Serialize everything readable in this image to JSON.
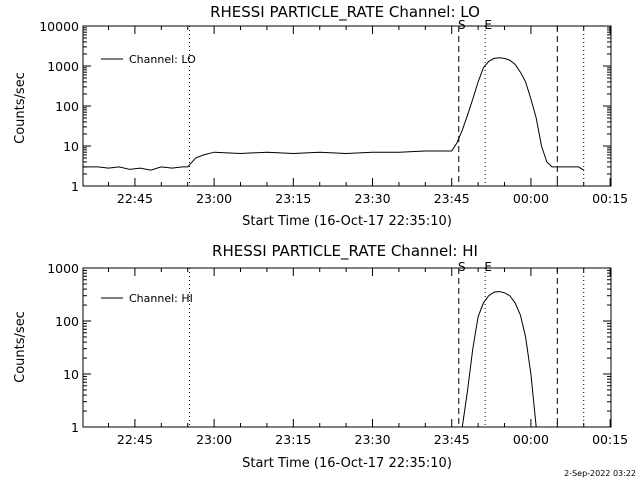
{
  "stamp": "2-Sep-2022 03:22",
  "chart_data": [
    {
      "type": "line",
      "title": "RHESSI PARTICLE_RATE Channel: LO",
      "xlabel": "Start Time (16-Oct-17 22:35:10)",
      "ylabel": "Counts/sec",
      "yscale": "log",
      "ylim": [
        1,
        10000
      ],
      "xlim": [
        "22:35:10",
        "00:15:10"
      ],
      "x_ticks": [
        "22:45",
        "23:00",
        "23:15",
        "23:30",
        "23:45",
        "00:00",
        "00:15"
      ],
      "y_ticks": [
        "1",
        "10",
        "100",
        "1000",
        "10000"
      ],
      "legend": "top-left",
      "markers": [
        {
          "label": "",
          "time": "22:55:20",
          "style": "dotted"
        },
        {
          "label": "S",
          "time": "23:46:20",
          "style": "dashed"
        },
        {
          "label": "E",
          "time": "23:51:20",
          "style": "dotted"
        },
        {
          "label": "",
          "time": "00:05:00",
          "style": "dashed"
        },
        {
          "label": "",
          "time": "00:10:00",
          "style": "dotted"
        }
      ],
      "series": [
        {
          "name": "Channel: LO",
          "x": [
            "22:35:10",
            "22:38:00",
            "22:40:00",
            "22:42:00",
            "22:44:00",
            "22:46:00",
            "22:48:00",
            "22:50:00",
            "22:52:00",
            "22:54:00",
            "22:55:00",
            "22:56:30",
            "22:58:00",
            "23:00:00",
            "23:05:00",
            "23:10:00",
            "23:15:00",
            "23:20:00",
            "23:25:00",
            "23:30:00",
            "23:35:00",
            "23:40:00",
            "23:43:00",
            "23:45:00",
            "23:46:00",
            "23:47:00",
            "23:48:00",
            "23:49:00",
            "23:50:00",
            "23:51:00",
            "23:52:00",
            "23:53:00",
            "23:54:00",
            "23:55:00",
            "23:56:00",
            "23:57:00",
            "23:58:00",
            "23:59:00",
            "00:00:00",
            "00:01:00",
            "00:02:00",
            "00:03:00",
            "00:04:00",
            "00:05:00",
            "00:07:00",
            "00:09:00",
            "00:10:00"
          ],
          "values": [
            3,
            3,
            2.8,
            3,
            2.6,
            2.8,
            2.5,
            3,
            2.8,
            3,
            3,
            5,
            6,
            7,
            6.5,
            7,
            6.5,
            7,
            6.5,
            7,
            7,
            7.5,
            7.5,
            7.5,
            12,
            25,
            60,
            150,
            400,
            900,
            1300,
            1550,
            1600,
            1550,
            1400,
            1100,
            700,
            400,
            150,
            50,
            10,
            4,
            3,
            3,
            3,
            3,
            2.5
          ]
        }
      ]
    },
    {
      "type": "line",
      "title": "RHESSI PARTICLE_RATE Channel: HI",
      "xlabel": "Start Time (16-Oct-17 22:35:10)",
      "ylabel": "Counts/sec",
      "yscale": "log",
      "ylim": [
        1,
        1000
      ],
      "xlim": [
        "22:35:10",
        "00:15:10"
      ],
      "x_ticks": [
        "22:45",
        "23:00",
        "23:15",
        "23:30",
        "23:45",
        "00:00",
        "00:15"
      ],
      "y_ticks": [
        "1",
        "10",
        "100",
        "1000"
      ],
      "legend": "top-left",
      "markers": [
        {
          "label": "",
          "time": "22:55:20",
          "style": "dotted"
        },
        {
          "label": "S",
          "time": "23:46:20",
          "style": "dashed"
        },
        {
          "label": "E",
          "time": "23:51:20",
          "style": "dotted"
        },
        {
          "label": "",
          "time": "00:05:00",
          "style": "dashed"
        },
        {
          "label": "",
          "time": "00:10:00",
          "style": "dotted"
        }
      ],
      "series": [
        {
          "name": "Channel: HI",
          "x": [
            "23:47:00",
            "23:48:00",
            "23:49:00",
            "23:50:00",
            "23:51:00",
            "23:52:00",
            "23:53:00",
            "23:54:00",
            "23:55:00",
            "23:56:00",
            "23:57:00",
            "23:58:00",
            "23:59:00",
            "00:00:00",
            "00:01:00"
          ],
          "values": [
            1,
            5,
            30,
            120,
            220,
            300,
            350,
            360,
            340,
            300,
            220,
            130,
            50,
            10,
            1
          ]
        }
      ]
    }
  ]
}
